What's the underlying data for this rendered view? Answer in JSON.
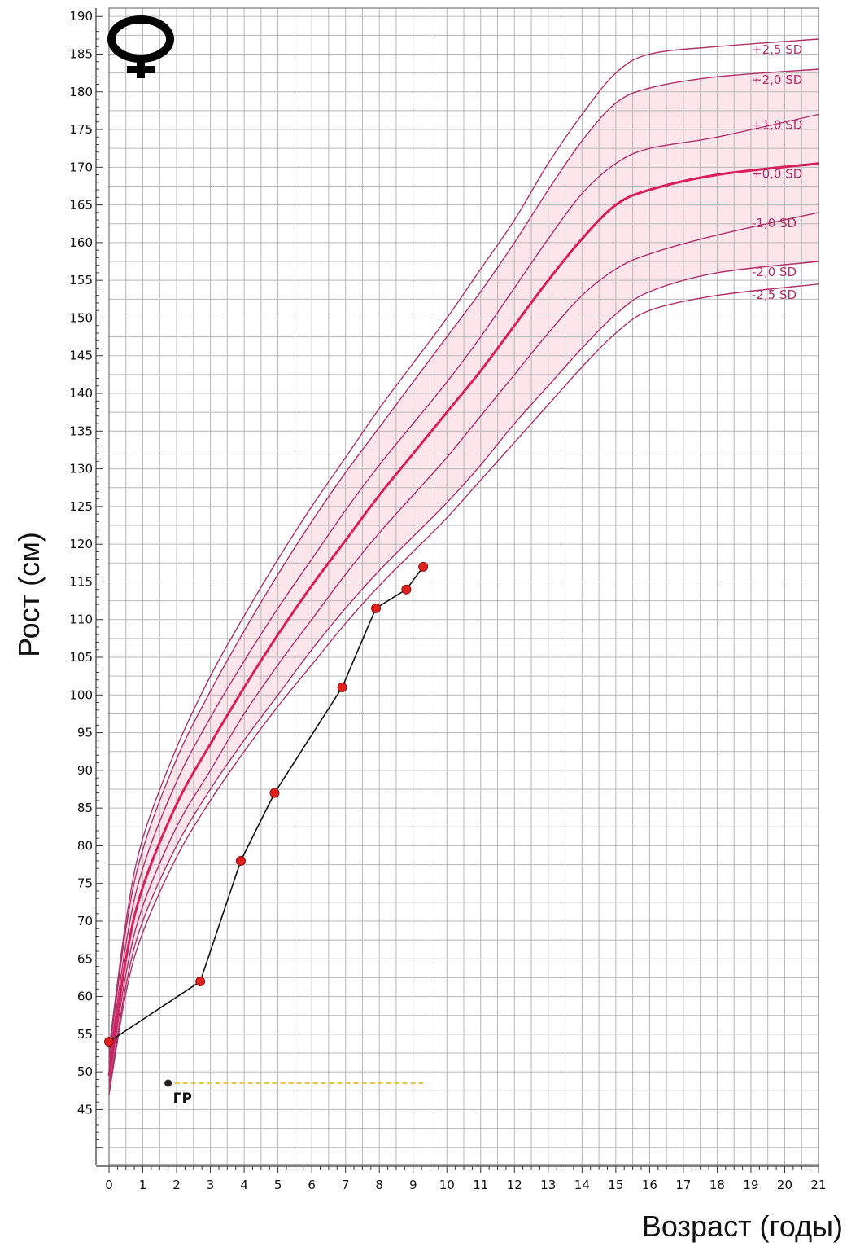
{
  "chart_data": {
    "type": "line",
    "xlabel": "Возраст (годы)",
    "ylabel": "Рост (см)",
    "xlim": [
      0,
      21
    ],
    "ylim": [
      45,
      190
    ],
    "x_ticks": [
      0,
      1,
      2,
      3,
      4,
      5,
      6,
      7,
      8,
      9,
      10,
      11,
      12,
      13,
      14,
      15,
      16,
      17,
      18,
      19,
      20,
      21
    ],
    "y_ticks": [
      45,
      50,
      55,
      60,
      65,
      70,
      75,
      80,
      85,
      90,
      95,
      100,
      105,
      110,
      115,
      120,
      125,
      130,
      135,
      140,
      145,
      150,
      155,
      160,
      165,
      170,
      175,
      180,
      185,
      190
    ],
    "grid": true,
    "symbol": "female-symbol-icon",
    "shaded_band": [
      "+2,0 SD",
      "-2,0 SD"
    ],
    "colors": {
      "sd_line": "#b0306a",
      "median_line": "#d81e5b",
      "band_fill": "#fbe1e8",
      "patient_line": "#111111",
      "patient_point": "#e0201c",
      "gp_line": "#e6c64a",
      "grid": "#b8b8b8"
    },
    "reference_curves": [
      {
        "name": "+2,5 SD",
        "x": [
          0,
          0.5,
          1,
          2,
          3,
          4,
          5,
          6,
          7,
          8,
          9,
          10,
          11,
          12,
          13,
          14,
          15,
          16,
          18,
          21
        ],
        "y": [
          53,
          70,
          81,
          93,
          102.5,
          110.5,
          118,
          125,
          131.5,
          138,
          144,
          150,
          156.5,
          163,
          170.5,
          177,
          182.5,
          185,
          186,
          187
        ]
      },
      {
        "name": "+2,0 SD",
        "x": [
          0,
          0.5,
          1,
          2,
          3,
          4,
          5,
          6,
          7,
          8,
          9,
          10,
          11,
          12,
          13,
          14,
          15,
          16,
          18,
          21
        ],
        "y": [
          52,
          69,
          79.5,
          91.5,
          100.5,
          108.5,
          116,
          123,
          129.5,
          135.5,
          141.5,
          147.5,
          153.5,
          160,
          167,
          173.5,
          178.5,
          180.5,
          182,
          183
        ]
      },
      {
        "name": "+1,0 SD",
        "x": [
          0,
          0.5,
          1,
          2,
          3,
          4,
          5,
          6,
          7,
          8,
          9,
          10,
          11,
          12,
          13,
          14,
          15,
          16,
          18,
          21
        ],
        "y": [
          51,
          67,
          77,
          88.5,
          97,
          104.5,
          111.5,
          118,
          124.5,
          130.5,
          136,
          141.5,
          147.5,
          154,
          160.5,
          166.5,
          170.5,
          172.5,
          174,
          177
        ]
      },
      {
        "name": "+0,0 SD",
        "x": [
          0,
          0.5,
          1,
          2,
          3,
          4,
          5,
          6,
          7,
          8,
          9,
          10,
          11,
          12,
          13,
          14,
          15,
          16,
          18,
          21
        ],
        "y": [
          49.5,
          65,
          74.5,
          85.5,
          93.5,
          101,
          108,
          114.5,
          120.5,
          126.5,
          132,
          137.5,
          143,
          149,
          155,
          160.5,
          165,
          167,
          169,
          170.5
        ]
      },
      {
        "name": "-1,0 SD",
        "x": [
          0,
          0.5,
          1,
          2,
          3,
          4,
          5,
          6,
          7,
          8,
          9,
          10,
          11,
          12,
          13,
          14,
          15,
          16,
          18,
          21
        ],
        "y": [
          48.5,
          63,
          72,
          82.5,
          90,
          97.5,
          104,
          110,
          116,
          121.5,
          126.5,
          131.5,
          137,
          142.5,
          148,
          153,
          156.5,
          158.5,
          161,
          164
        ]
      },
      {
        "name": "-2,0 SD",
        "x": [
          0,
          0.5,
          1,
          2,
          3,
          4,
          5,
          6,
          7,
          8,
          9,
          10,
          11,
          12,
          13,
          14,
          15,
          16,
          18,
          21
        ],
        "y": [
          47.5,
          61.5,
          70,
          80,
          87.5,
          94,
          100,
          106,
          111.5,
          116.5,
          121,
          125.5,
          130.5,
          136,
          141,
          146,
          150.5,
          153.5,
          156,
          157.5
        ]
      },
      {
        "name": "-2,5 SD",
        "x": [
          0,
          0.5,
          1,
          2,
          3,
          4,
          5,
          6,
          7,
          8,
          9,
          10,
          11,
          12,
          13,
          14,
          15,
          16,
          18,
          21
        ],
        "y": [
          47,
          60.5,
          68.5,
          78.5,
          86,
          92.5,
          98.5,
          104,
          109.5,
          114.5,
          119,
          123.5,
          128.5,
          133.5,
          138.5,
          143.5,
          148,
          151,
          153,
          154.5
        ]
      }
    ],
    "patient_series": {
      "x": [
        0,
        2.7,
        3.9,
        4.9,
        6.9,
        7.9,
        8.8,
        9.3
      ],
      "y": [
        54,
        62,
        78,
        87,
        101,
        111.5,
        114,
        117
      ]
    },
    "gp": {
      "label": "ГР",
      "x": [
        1.75,
        9.3
      ],
      "y": 48.5
    }
  }
}
